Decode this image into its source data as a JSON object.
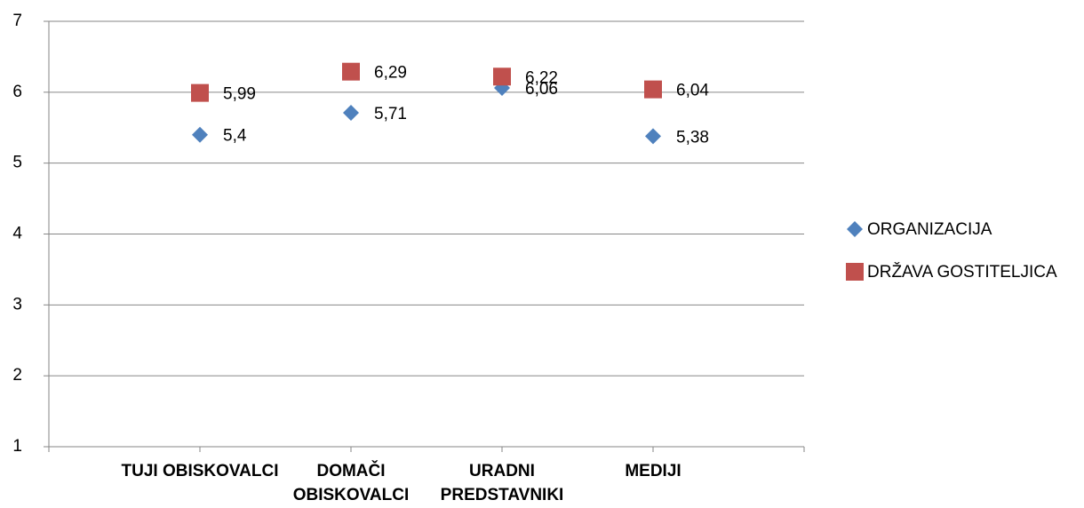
{
  "chart_data": {
    "type": "scatter",
    "categories": [
      "TUJI OBISKOVALCI",
      "DOMAČI OBISKOVALCI",
      "URADNI PREDSTAVNIKI",
      "MEDIJI"
    ],
    "series": [
      {
        "name": "ORGANIZACIJA",
        "color": "#4f81bd",
        "marker": "diamond",
        "values": [
          5.4,
          5.71,
          6.06,
          5.38
        ],
        "value_labels": [
          "5,4",
          "5,71",
          "6,06",
          "5,38"
        ]
      },
      {
        "name": "DRŽAVA GOSTITELJICA",
        "color": "#c0504d",
        "marker": "square",
        "values": [
          5.99,
          6.29,
          6.22,
          6.04
        ],
        "value_labels": [
          "5,99",
          "6,29",
          "6,22",
          "6,04"
        ]
      }
    ],
    "ylim": [
      1,
      7
    ],
    "yticks": [
      1,
      2,
      3,
      4,
      5,
      6,
      7
    ],
    "grid": true,
    "legend": "right"
  }
}
